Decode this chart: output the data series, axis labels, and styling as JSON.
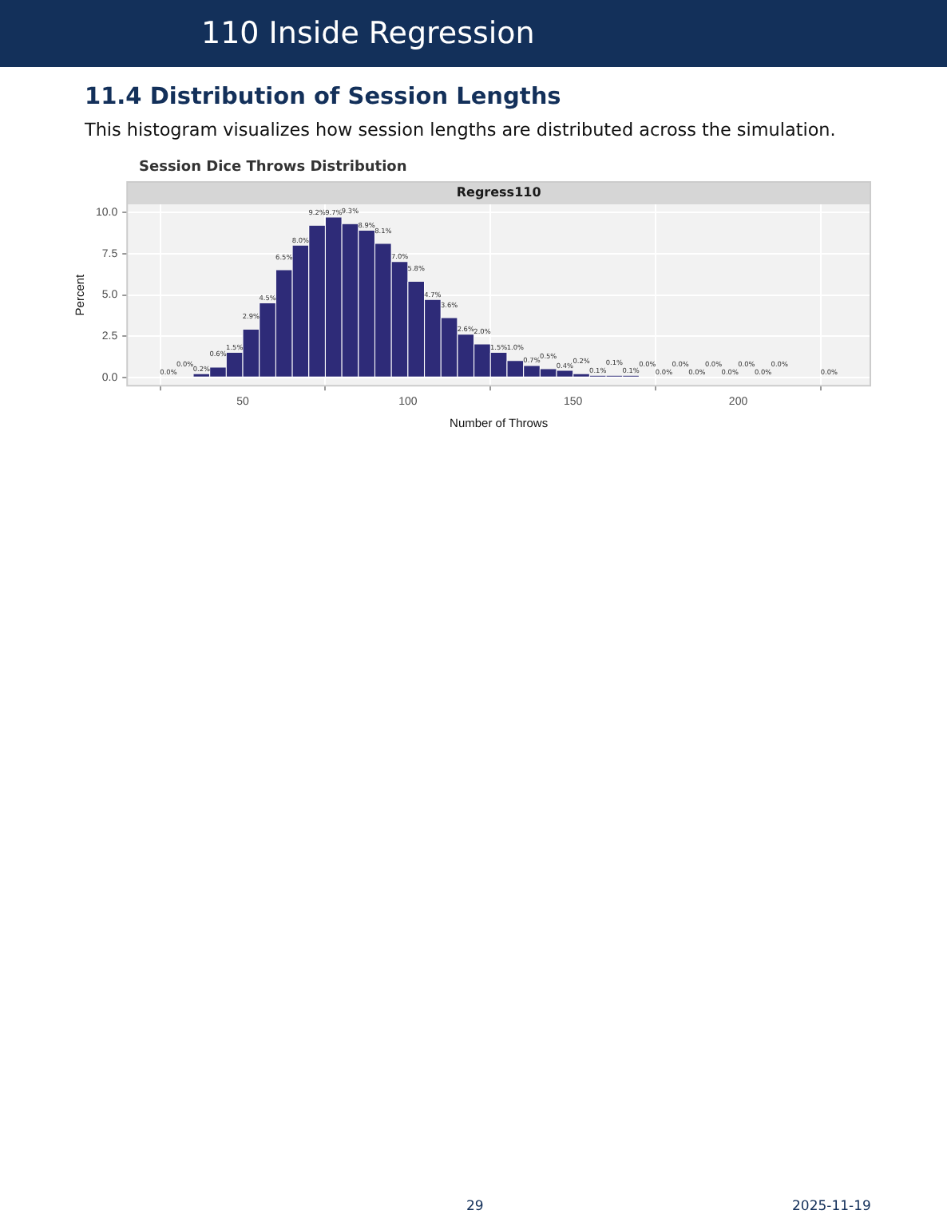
{
  "chart_data": {
    "type": "histogram",
    "title": "Session Dice Throws Distribution",
    "subtitle": "Regress110",
    "xlabel": "Number of Throws",
    "ylabel": "Percent",
    "bins": [
      25,
      30,
      35,
      40,
      45,
      50,
      55,
      60,
      65,
      70,
      75,
      80,
      85,
      90,
      95,
      100,
      105,
      110,
      115,
      120,
      125,
      130,
      135,
      140,
      145,
      150,
      155,
      160,
      165,
      170,
      175,
      180,
      185,
      190,
      195,
      200,
      205,
      210,
      215,
      220,
      225,
      230
    ],
    "values": [
      0.0,
      0.0,
      0.2,
      0.6,
      1.5,
      2.9,
      4.5,
      6.5,
      8.0,
      9.2,
      9.7,
      9.3,
      8.9,
      8.1,
      7.0,
      5.8,
      4.7,
      3.6,
      2.6,
      2.0,
      1.5,
      1.0,
      0.7,
      0.5,
      0.4,
      0.2,
      0.1,
      0.1,
      0.1,
      0.0,
      0.0,
      0.0,
      0.0,
      0.0,
      0.0,
      0.0,
      0.0,
      0.0,
      null,
      null,
      0.0
    ],
    "value_labels": [
      "0.0%",
      "0.0%",
      "0.2%",
      "0.6%",
      "1.5%",
      "2.9%",
      "4.5%",
      "6.5%",
      "8.0%",
      "9.2%",
      "9.7%",
      "9.3%",
      "8.9%",
      "8.1%",
      "7.0%",
      "5.8%",
      "4.7%",
      "3.6%",
      "2.6%",
      "2.0%",
      "1.5%",
      "1.0%",
      "0.7%",
      "0.5%",
      "0.4%",
      "0.2%",
      "0.1%",
      "0.1%",
      "0.1%",
      "0.0%",
      "0.0%",
      "0.0%",
      "0.0%",
      "0.0%",
      "0.0%",
      "0.0%",
      "0.0%",
      "0.0%",
      null,
      null,
      "0.0%"
    ],
    "color": "#2e2b78",
    "xlim": [
      15,
      240
    ],
    "xticks": [
      50,
      100,
      150,
      200
    ],
    "ylim": [
      -0.5,
      10.5
    ],
    "yticks": [
      {
        "value": 0,
        "label": "0.0"
      },
      {
        "value": 2.5,
        "label": "2.5"
      },
      {
        "value": 5,
        "label": "5.0"
      },
      {
        "value": 7.5,
        "label": "7.5"
      },
      {
        "value": 10,
        "label": "10.0"
      }
    ],
    "grid": true,
    "annotations": [
      "110 Inside Regression",
      "11.4 Distribution of Session Lengths",
      "This histogram visualizes how session lengths are distributed across the simulation.",
      "29",
      "2025-11-19"
    ]
  }
}
